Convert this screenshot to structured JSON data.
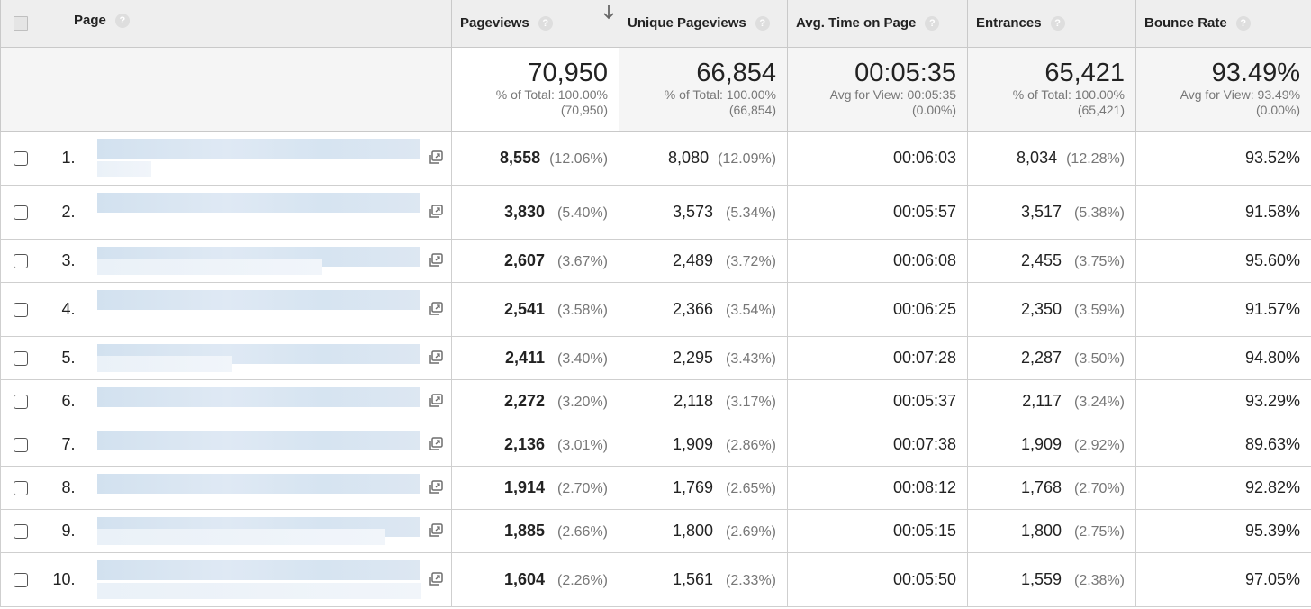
{
  "header": {
    "page": "Page",
    "pageviews": "Pageviews",
    "unique_pageviews": "Unique Pageviews",
    "avg_time": "Avg. Time on Page",
    "entrances": "Entrances",
    "bounce_rate": "Bounce Rate",
    "help": "?"
  },
  "totals": {
    "pageviews": {
      "value": "70,950",
      "line1": "% of Total: 100.00%",
      "line2": "(70,950)"
    },
    "unique_pageviews": {
      "value": "66,854",
      "line1": "% of Total: 100.00%",
      "line2": "(66,854)"
    },
    "avg_time": {
      "value": "00:05:35",
      "line1": "Avg for View: 00:05:35",
      "line2": "(0.00%)"
    },
    "entrances": {
      "value": "65,421",
      "line1": "% of Total: 100.00%",
      "line2": "(65,421)"
    },
    "bounce_rate": {
      "value": "93.49%",
      "line1": "Avg for View: 93.49%",
      "line2": "(0.00%)"
    }
  },
  "rows": [
    {
      "num": "1.",
      "pv": "8,558",
      "pv_pct": "(12.06%)",
      "upv": "8,080",
      "upv_pct": "(12.09%)",
      "time": "00:06:03",
      "ent": "8,034",
      "ent_pct": "(12.28%)",
      "bounce": "93.52%"
    },
    {
      "num": "2.",
      "pv": "3,830",
      "pv_pct": "(5.40%)",
      "upv": "3,573",
      "upv_pct": "(5.34%)",
      "time": "00:05:57",
      "ent": "3,517",
      "ent_pct": "(5.38%)",
      "bounce": "91.58%"
    },
    {
      "num": "3.",
      "pv": "2,607",
      "pv_pct": "(3.67%)",
      "upv": "2,489",
      "upv_pct": "(3.72%)",
      "time": "00:06:08",
      "ent": "2,455",
      "ent_pct": "(3.75%)",
      "bounce": "95.60%"
    },
    {
      "num": "4.",
      "pv": "2,541",
      "pv_pct": "(3.58%)",
      "upv": "2,366",
      "upv_pct": "(3.54%)",
      "time": "00:06:25",
      "ent": "2,350",
      "ent_pct": "(3.59%)",
      "bounce": "91.57%"
    },
    {
      "num": "5.",
      "pv": "2,411",
      "pv_pct": "(3.40%)",
      "upv": "2,295",
      "upv_pct": "(3.43%)",
      "time": "00:07:28",
      "ent": "2,287",
      "ent_pct": "(3.50%)",
      "bounce": "94.80%"
    },
    {
      "num": "6.",
      "pv": "2,272",
      "pv_pct": "(3.20%)",
      "upv": "2,118",
      "upv_pct": "(3.17%)",
      "time": "00:05:37",
      "ent": "2,117",
      "ent_pct": "(3.24%)",
      "bounce": "93.29%"
    },
    {
      "num": "7.",
      "pv": "2,136",
      "pv_pct": "(3.01%)",
      "upv": "1,909",
      "upv_pct": "(2.86%)",
      "time": "00:07:38",
      "ent": "1,909",
      "ent_pct": "(2.92%)",
      "bounce": "89.63%"
    },
    {
      "num": "8.",
      "pv": "1,914",
      "pv_pct": "(2.70%)",
      "upv": "1,769",
      "upv_pct": "(2.65%)",
      "time": "00:08:12",
      "ent": "1,768",
      "ent_pct": "(2.70%)",
      "bounce": "92.82%"
    },
    {
      "num": "9.",
      "pv": "1,885",
      "pv_pct": "(2.66%)",
      "upv": "1,800",
      "upv_pct": "(2.69%)",
      "time": "00:05:15",
      "ent": "1,800",
      "ent_pct": "(2.75%)",
      "bounce": "95.39%"
    },
    {
      "num": "10.",
      "pv": "1,604",
      "pv_pct": "(2.26%)",
      "upv": "1,561",
      "upv_pct": "(2.33%)",
      "time": "00:05:50",
      "ent": "1,559",
      "ent_pct": "(2.38%)",
      "bounce": "97.05%"
    }
  ]
}
